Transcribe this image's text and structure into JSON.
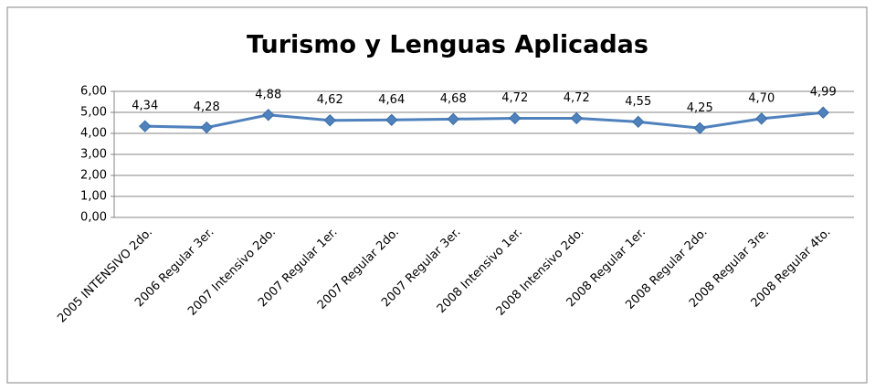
{
  "chart_data": {
    "type": "line",
    "title": "Turismo y Lenguas Aplicadas",
    "categories": [
      "2005 INTENSIVO 2do.",
      "2006 Regular 3er.",
      "2007 Intensivo 2do.",
      "2007 Regular 1er.",
      "2007 Regular 2do.",
      "2007 Regular 3er.",
      "2008 Intensivo 1er.",
      "2008 Intensivo 2do.",
      "2008 Regular 1er.",
      "2008 Regular 2do.",
      "2008 Regular 3re.",
      "2008 Regular 4to."
    ],
    "values": [
      4.34,
      4.28,
      4.88,
      4.62,
      4.64,
      4.68,
      4.72,
      4.72,
      4.55,
      4.25,
      4.7,
      4.99
    ],
    "value_labels": [
      "4,34",
      "4,28",
      "4,88",
      "4,62",
      "4,64",
      "4,68",
      "4,72",
      "4,72",
      "4,55",
      "4,25",
      "4,70",
      "4,99"
    ],
    "color": "#4f81bd",
    "ylim": [
      0,
      6
    ],
    "yticks": [
      {
        "value": 0,
        "label": "0,00"
      },
      {
        "value": 1,
        "label": "1,00"
      },
      {
        "value": 2,
        "label": "2,00"
      },
      {
        "value": 3,
        "label": "3,00"
      },
      {
        "value": 4,
        "label": "4,00"
      },
      {
        "value": 5,
        "label": "5,00"
      },
      {
        "value": 6,
        "label": "6,00"
      }
    ],
    "grid": true
  }
}
